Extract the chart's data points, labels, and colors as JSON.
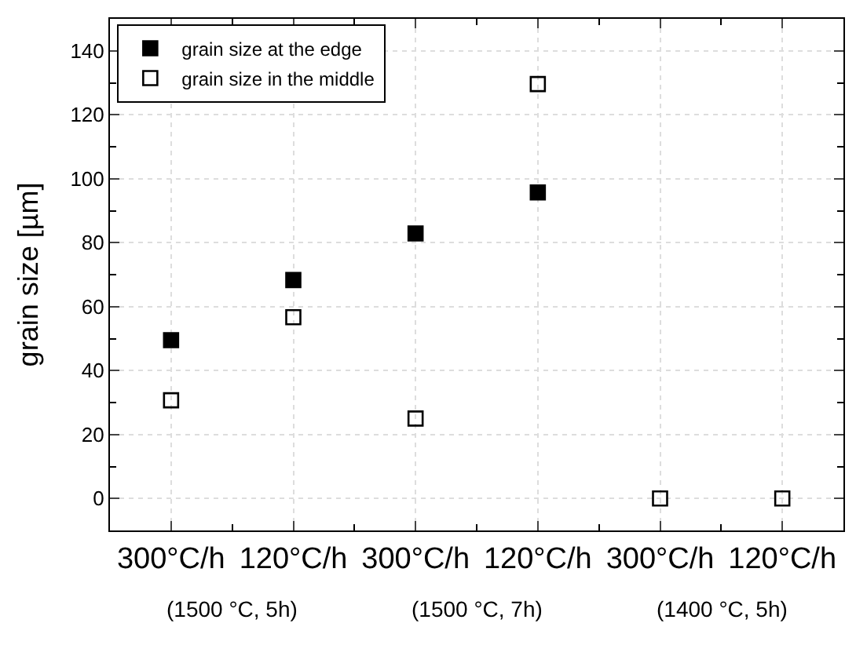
{
  "chart_data": {
    "type": "scatter",
    "ylabel": "grain size [µm]",
    "categories": [
      "300°C/h",
      "120°C/h",
      "300°C/h",
      "120°C/h",
      "300°C/h",
      "120°C/h"
    ],
    "series": [
      {
        "name": "grain size at the edge",
        "color": "#000000",
        "marker": "square",
        "values": [
          49.5,
          68.3,
          82.9,
          95.7,
          null,
          null
        ]
      },
      {
        "name": "grain size in the middle",
        "color": "#000000",
        "marker": "square",
        "values": [
          30.7,
          56.7,
          25,
          129.6,
          0,
          0
        ]
      }
    ],
    "ylim": [
      -10,
      150
    ],
    "yticks": [
      0,
      20,
      40,
      60,
      80,
      100,
      120,
      140
    ],
    "grid": true,
    "legend": "top left",
    "annotations": [
      "(1500 °C, 5h)",
      "(1500 °C, 7h)",
      "(1400 °C, 5h)"
    ]
  }
}
